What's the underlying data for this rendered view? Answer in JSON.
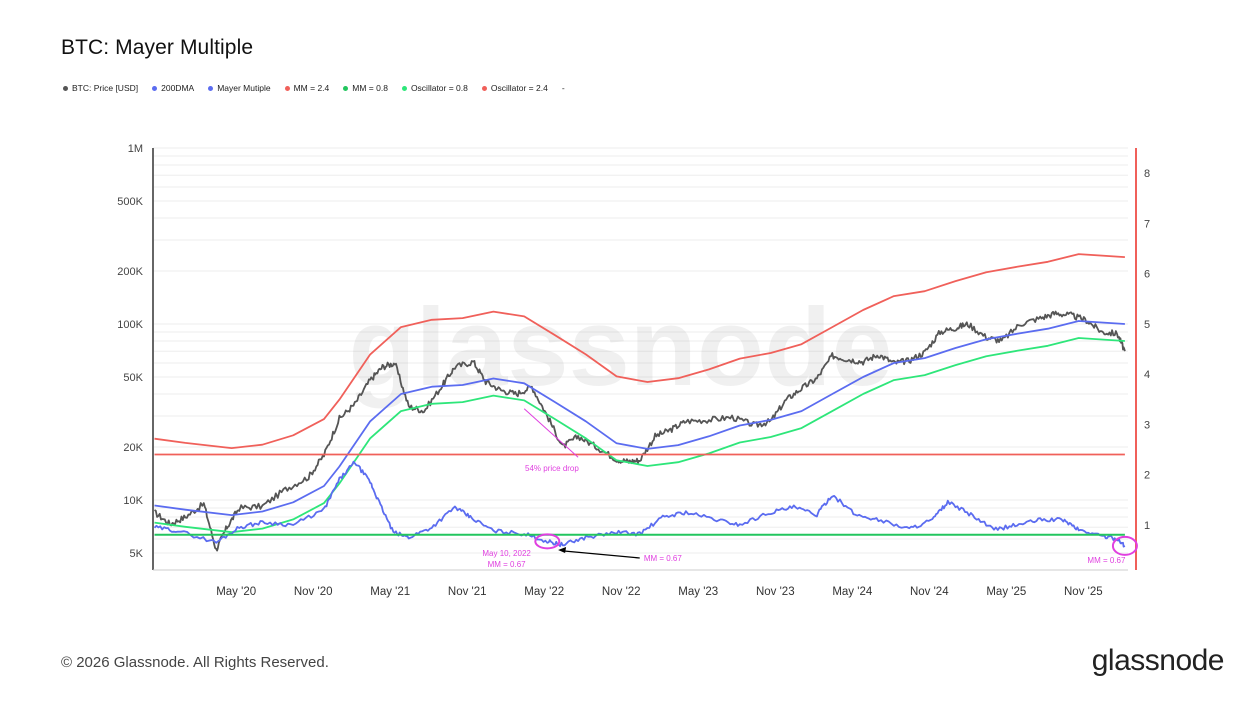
{
  "title": "BTC: Mayer Multiple",
  "legend": [
    {
      "label": "BTC: Price [USD]",
      "color": "#555555"
    },
    {
      "label": "200DMA",
      "color": "#5b6cf0"
    },
    {
      "label": "Mayer Mutiple",
      "color": "#5b6cf0"
    },
    {
      "label": "MM = 2.4",
      "color": "#f0605a"
    },
    {
      "label": "MM = 0.8",
      "color": "#22c55e"
    },
    {
      "label": "Oscillator = 0.8",
      "color": "#2ee67a"
    },
    {
      "label": "Oscillator = 2.4",
      "color": "#f0605a"
    },
    {
      "label": "-",
      "color": ""
    }
  ],
  "watermark": "glassnode",
  "footer": {
    "copyright": "© 2026 Glassnode. All Rights Reserved.",
    "logo": "glassnode"
  },
  "chart_data": {
    "type": "line",
    "title": "BTC: Mayer Multiple",
    "x_ticks": [
      "May '20",
      "Nov '20",
      "May '21",
      "Nov '21",
      "May '22",
      "Nov '22",
      "May '23",
      "Nov '23",
      "May '24",
      "Nov '24",
      "May '25",
      "Nov '25"
    ],
    "x_range": [
      2019.79,
      2026.12
    ],
    "y_left": {
      "scale": "log",
      "range": [
        4000,
        1000000
      ],
      "ticks": [
        {
          "v": 1000000,
          "label": "1M"
        },
        {
          "v": 500000,
          "label": "500K"
        },
        {
          "v": 200000,
          "label": "200K"
        },
        {
          "v": 100000,
          "label": "100K"
        },
        {
          "v": 50000,
          "label": "50K"
        },
        {
          "v": 20000,
          "label": "20K"
        },
        {
          "v": 10000,
          "label": "10K"
        },
        {
          "v": 5000,
          "label": "5K"
        }
      ]
    },
    "y_right": {
      "scale": "linear",
      "range": [
        0.1,
        8.5
      ],
      "ticks": [
        {
          "v": 1,
          "label": "1"
        },
        {
          "v": 2,
          "label": "2"
        },
        {
          "v": 3,
          "label": "3"
        },
        {
          "v": 4,
          "label": "4"
        },
        {
          "v": 5,
          "label": "5"
        },
        {
          "v": 6,
          "label": "6"
        },
        {
          "v": 7,
          "label": "7"
        },
        {
          "v": 8,
          "label": "8"
        }
      ]
    },
    "series": [
      {
        "name": "BTC: Price [USD]",
        "axis": "left",
        "color": "#555555",
        "x": [
          2019.8,
          2019.9,
          2020.0,
          2020.12,
          2020.2,
          2020.27,
          2020.35,
          2020.5,
          2020.65,
          2020.8,
          2020.9,
          2021.0,
          2021.1,
          2021.2,
          2021.28,
          2021.36,
          2021.45,
          2021.55,
          2021.67,
          2021.75,
          2021.87,
          2021.95,
          2022.05,
          2022.15,
          2022.25,
          2022.35,
          2022.45,
          2022.55,
          2022.67,
          2022.8,
          2022.88,
          2022.95,
          2023.05,
          2023.15,
          2023.25,
          2023.4,
          2023.55,
          2023.7,
          2023.8,
          2023.9,
          2024.0,
          2024.1,
          2024.2,
          2024.3,
          2024.4,
          2024.5,
          2024.6,
          2024.7,
          2024.8,
          2024.9,
          2025.0,
          2025.08,
          2025.2,
          2025.3,
          2025.42,
          2025.55,
          2025.65,
          2025.75,
          2025.85,
          2025.95,
          2026.05,
          2026.1
        ],
        "y": [
          8500,
          7300,
          8000,
          9500,
          5200,
          7000,
          9000,
          9200,
          11500,
          13500,
          18000,
          29000,
          35000,
          48000,
          57000,
          60000,
          34000,
          32000,
          45000,
          57000,
          61000,
          47000,
          42000,
          40000,
          44000,
          30000,
          20000,
          23000,
          20000,
          17000,
          16500,
          16800,
          23000,
          25000,
          28000,
          28500,
          29500,
          26500,
          28000,
          37000,
          43000,
          49000,
          66000,
          63000,
          61000,
          67000,
          60000,
          62000,
          69000,
          90000,
          95000,
          100000,
          84000,
          80000,
          100000,
          108000,
          115000,
          112000,
          105000,
          90000,
          88000,
          70000
        ]
      },
      {
        "name": "200DMA",
        "axis": "left",
        "color": "#5b6cf0",
        "x": [
          2019.8,
          2020.0,
          2020.3,
          2020.5,
          2020.7,
          2020.9,
          2021.0,
          2021.2,
          2021.4,
          2021.6,
          2021.8,
          2022.0,
          2022.2,
          2022.4,
          2022.6,
          2022.8,
          2023.0,
          2023.2,
          2023.4,
          2023.6,
          2023.8,
          2024.0,
          2024.2,
          2024.4,
          2024.6,
          2024.8,
          2025.0,
          2025.2,
          2025.4,
          2025.6,
          2025.8,
          2026.1
        ],
        "y": [
          9300,
          8800,
          8200,
          8600,
          9700,
          12000,
          15500,
          28000,
          40000,
          44000,
          45000,
          49000,
          46000,
          36000,
          28000,
          21000,
          19500,
          20500,
          23000,
          26500,
          28500,
          32000,
          40000,
          50000,
          60000,
          64000,
          73000,
          82000,
          88000,
          94000,
          104000,
          100000
        ]
      },
      {
        "name": "MM = 2.4",
        "axis": "left",
        "color": "#f0605a",
        "x": [
          2019.8,
          2020.0,
          2020.3,
          2020.5,
          2020.7,
          2020.9,
          2021.0,
          2021.2,
          2021.4,
          2021.6,
          2021.8,
          2022.0,
          2022.2,
          2022.4,
          2022.6,
          2022.8,
          2023.0,
          2023.2,
          2023.4,
          2023.6,
          2023.8,
          2024.0,
          2024.2,
          2024.4,
          2024.6,
          2024.8,
          2025.0,
          2025.2,
          2025.4,
          2025.6,
          2025.8,
          2026.1
        ],
        "y": [
          22300,
          21100,
          19700,
          20600,
          23300,
          28800,
          37200,
          67200,
          96000,
          105600,
          108000,
          117600,
          110400,
          86400,
          67200,
          50400,
          46800,
          49200,
          55200,
          63600,
          68400,
          76800,
          96000,
          120000,
          144000,
          153600,
          175200,
          196800,
          211200,
          225600,
          249600,
          240000
        ]
      },
      {
        "name": "Oscillator = 0.8",
        "axis": "left",
        "color": "#2ee67a",
        "x": [
          2019.8,
          2020.0,
          2020.3,
          2020.5,
          2020.7,
          2020.9,
          2021.0,
          2021.2,
          2021.4,
          2021.6,
          2021.8,
          2022.0,
          2022.2,
          2022.4,
          2022.6,
          2022.8,
          2023.0,
          2023.2,
          2023.4,
          2023.6,
          2023.8,
          2024.0,
          2024.2,
          2024.4,
          2024.6,
          2024.8,
          2025.0,
          2025.2,
          2025.4,
          2025.6,
          2025.8,
          2026.1
        ],
        "y": [
          7440,
          7040,
          6560,
          6880,
          7760,
          9600,
          12400,
          22400,
          32000,
          35200,
          36000,
          39200,
          36800,
          28800,
          22400,
          16800,
          15600,
          16400,
          18400,
          21200,
          22800,
          25600,
          32000,
          40000,
          48000,
          51200,
          58400,
          65600,
          70400,
          75200,
          83200,
          80000
        ]
      },
      {
        "name": "Mayer Mutiple",
        "axis": "right",
        "color": "#5b6cf0",
        "x": [
          2019.8,
          2019.95,
          2020.2,
          2020.35,
          2020.5,
          2020.7,
          2020.9,
          2021.0,
          2021.1,
          2021.2,
          2021.25,
          2021.35,
          2021.45,
          2021.6,
          2021.75,
          2021.85,
          2022.0,
          2022.2,
          2022.35,
          2022.45,
          2022.6,
          2022.8,
          2022.95,
          2023.1,
          2023.25,
          2023.45,
          2023.6,
          2023.8,
          2023.95,
          2024.1,
          2024.2,
          2024.35,
          2024.5,
          2024.7,
          2024.85,
          2024.95,
          2025.1,
          2025.25,
          2025.4,
          2025.55,
          2025.7,
          2025.8,
          2025.95,
          2026.05,
          2026.1
        ],
        "y": [
          0.95,
          0.88,
          0.65,
          0.95,
          1.05,
          1.0,
          1.3,
          1.9,
          2.25,
          1.85,
          1.5,
          0.85,
          0.75,
          0.95,
          1.35,
          1.15,
          0.88,
          0.82,
          0.67,
          0.6,
          0.75,
          0.85,
          0.82,
          1.15,
          1.25,
          1.1,
          1.0,
          1.25,
          1.35,
          1.2,
          1.6,
          1.2,
          1.1,
          0.92,
          1.1,
          1.45,
          1.2,
          0.9,
          1.0,
          1.1,
          1.1,
          0.9,
          0.78,
          0.72,
          0.58
        ]
      },
      {
        "name": "MM 2.4 line",
        "axis": "right",
        "color": "#f0605a",
        "x": [
          2019.8,
          2026.1
        ],
        "y": [
          2.4,
          2.4
        ]
      },
      {
        "name": "MM 0.8 line",
        "axis": "right",
        "color": "#22c55e",
        "x": [
          2019.8,
          2026.1
        ],
        "y": [
          0.8,
          0.8
        ]
      }
    ],
    "annotations": [
      {
        "text": "54% price drop",
        "color": "#e040e0"
      },
      {
        "text_lines": [
          "May 10, 2022",
          "MM = 0.67"
        ],
        "color": "#e040e0"
      },
      {
        "text": "MM = 0.67",
        "color": "#e040e0"
      },
      {
        "text": "MM = 0.67",
        "color": "#e040e0"
      }
    ]
  }
}
